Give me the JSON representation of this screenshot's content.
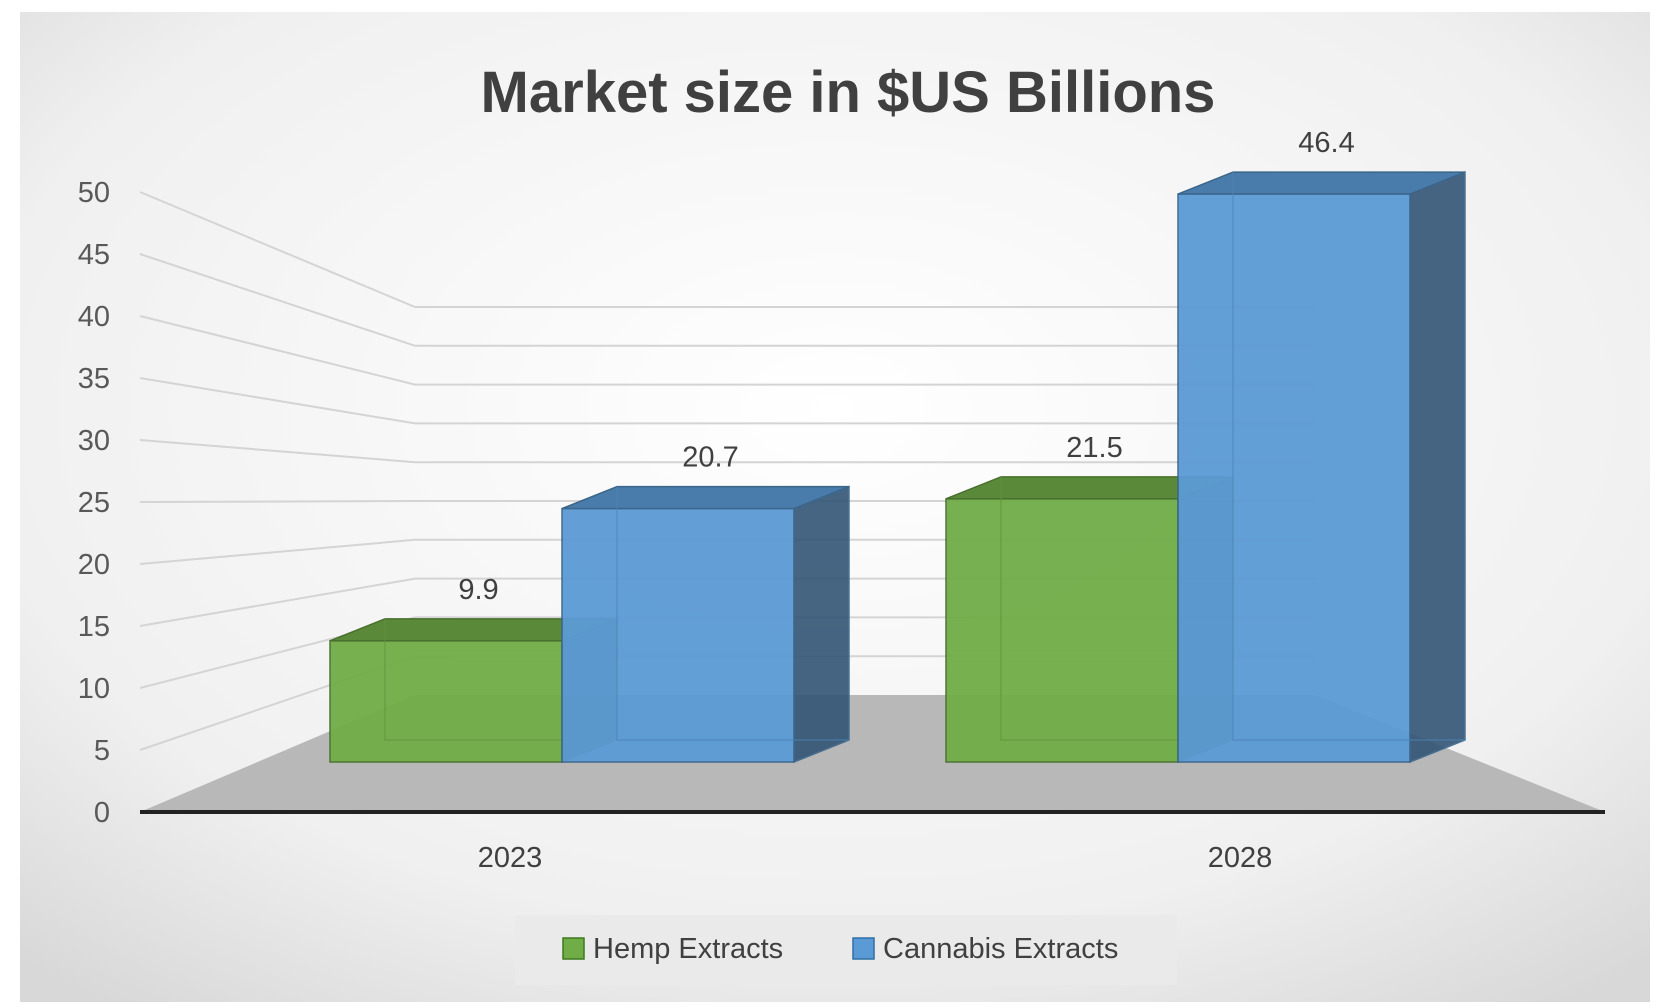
{
  "chart_data": {
    "type": "bar",
    "title": "Market size in $US Billions",
    "categories": [
      "2023",
      "2028"
    ],
    "series": [
      {
        "name": "Hemp Extracts",
        "values": [
          9.9,
          21.5
        ],
        "color": "#70ad47"
      },
      {
        "name": "Cannabis Extracts",
        "values": [
          20.7,
          46.4
        ],
        "color": "#5b9bd5"
      }
    ],
    "data_labels": [
      [
        "9.9",
        "21.5"
      ],
      [
        "20.7",
        "46.4"
      ]
    ],
    "yticks": [
      "0",
      "5",
      "10",
      "15",
      "20",
      "25",
      "30",
      "35",
      "40",
      "45",
      "50"
    ],
    "ylim": [
      0,
      50
    ],
    "grid": true,
    "legend_position": "bottom",
    "style": "3d"
  }
}
